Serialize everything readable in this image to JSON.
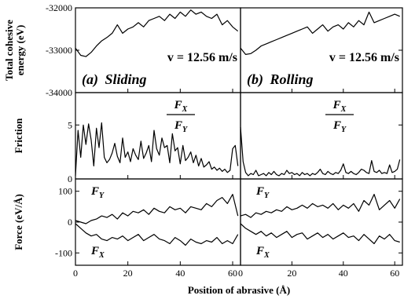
{
  "chart_data": {
    "type": "line",
    "xlabel": "Position of abrasive (Å)",
    "xlim": [
      0,
      63
    ],
    "x_ticks": [
      "0",
      "20",
      "40",
      "60"
    ],
    "x_tick_values": [
      0,
      20,
      40,
      60
    ],
    "columns": [
      {
        "panel_label": "(a)",
        "panel_title": "Sliding",
        "velocity": "v = 12.56 m/s"
      },
      {
        "panel_label": "(b)",
        "panel_title": "Rolling",
        "velocity": "v = 12.56 m/s"
      }
    ],
    "rows": [
      {
        "ylabel": "Total cohesive energy (eV)",
        "ylim": [
          -34000,
          -32000
        ],
        "y_ticks": [
          "-32000",
          "-33000",
          "-34000"
        ],
        "y_tick_values": [
          -32000,
          -33000,
          -34000
        ],
        "series": [
          {
            "column": 0,
            "x": [
              0,
              2,
              4,
              6,
              8,
              10,
              12,
              14,
              16,
              18,
              20,
              22,
              24,
              26,
              28,
              30,
              32,
              34,
              36,
              38,
              40,
              42,
              44,
              46,
              48,
              50,
              52,
              54,
              56,
              58,
              60,
              62
            ],
            "values": [
              -32950,
              -33120,
              -33150,
              -33050,
              -32900,
              -32780,
              -32700,
              -32600,
              -32400,
              -32600,
              -32500,
              -32450,
              -32350,
              -32450,
              -32300,
              -32250,
              -32200,
              -32300,
              -32150,
              -32250,
              -32100,
              -32200,
              -32050,
              -32150,
              -32100,
              -32200,
              -32250,
              -32150,
              -32400,
              -32300,
              -32450,
              -32550
            ]
          },
          {
            "column": 1,
            "x": [
              0,
              2,
              4,
              6,
              8,
              10,
              12,
              14,
              16,
              18,
              20,
              22,
              24,
              26,
              28,
              30,
              32,
              34,
              36,
              38,
              40,
              42,
              44,
              46,
              48,
              50,
              52,
              54,
              56,
              58,
              60,
              62
            ],
            "values": [
              -32950,
              -33100,
              -33080,
              -33000,
              -32900,
              -32850,
              -32800,
              -32750,
              -32700,
              -32650,
              -32600,
              -32550,
              -32500,
              -32450,
              -32600,
              -32500,
              -32400,
              -32550,
              -32450,
              -32400,
              -32500,
              -32350,
              -32450,
              -32300,
              -32400,
              -32100,
              -32350,
              -32300,
              -32250,
              -32200,
              -32150,
              -32200
            ]
          }
        ]
      },
      {
        "ylabel": "Friction",
        "ylim": [
          0,
          8
        ],
        "y_ticks": [
          "5",
          "0"
        ],
        "y_tick_values": [
          5,
          0
        ],
        "annotation": {
          "numerator": "F",
          "numerator_sub": "X",
          "denominator": "F",
          "denominator_sub": "Y"
        },
        "series": [
          {
            "column": 0,
            "x": [
              0,
              1,
              2,
              3,
              4,
              5,
              6,
              7,
              8,
              9,
              10,
              11,
              12,
              13,
              14,
              15,
              16,
              17,
              18,
              19,
              20,
              21,
              22,
              23,
              24,
              25,
              26,
              27,
              28,
              29,
              30,
              31,
              32,
              33,
              34,
              35,
              36,
              37,
              38,
              39,
              40,
              41,
              42,
              43,
              44,
              45,
              46,
              47,
              48,
              49,
              50,
              51,
              52,
              53,
              54,
              55,
              56,
              57,
              58,
              59,
              60,
              61,
              62
            ],
            "values": [
              0.3,
              4.5,
              2,
              5,
              3.2,
              5.1,
              3.6,
              1.2,
              4.7,
              2.9,
              5.2,
              2,
              1.5,
              1.8,
              2.4,
              3.3,
              2.1,
              1.5,
              3.8,
              2,
              2.5,
              1.6,
              2.8,
              2.2,
              1.8,
              3.5,
              1.9,
              2.4,
              3.1,
              1.6,
              4.5,
              2.8,
              2.2,
              3.8,
              2.9,
              3.1,
              1.5,
              4.2,
              2.6,
              2.9,
              1.4,
              3.1,
              1.7,
              2,
              2.5,
              1.5,
              2.2,
              1.2,
              1.9,
              1.1,
              1.3,
              1.6,
              0.9,
              1.1,
              0.8,
              1,
              0.7,
              0.9,
              0.6,
              0.8,
              2.8,
              3.1,
              1.2
            ]
          },
          {
            "column": 1,
            "x": [
              0,
              1,
              2,
              3,
              4,
              5,
              6,
              7,
              8,
              9,
              10,
              11,
              12,
              13,
              14,
              15,
              16,
              17,
              18,
              19,
              20,
              21,
              22,
              23,
              24,
              25,
              26,
              27,
              28,
              29,
              30,
              31,
              32,
              33,
              34,
              35,
              36,
              37,
              38,
              39,
              40,
              41,
              42,
              43,
              44,
              45,
              46,
              47,
              48,
              49,
              50,
              51,
              52,
              53,
              54,
              55,
              56,
              57,
              58,
              59,
              60,
              61,
              62
            ],
            "values": [
              4.8,
              1.6,
              0.6,
              0.3,
              0.5,
              0.4,
              0.8,
              0.3,
              0.4,
              0.5,
              0.3,
              0.6,
              0.4,
              0.7,
              0.4,
              0.3,
              0.5,
              0.4,
              0.8,
              0.5,
              0.6,
              0.4,
              0.5,
              0.3,
              0.6,
              0.4,
              0.5,
              0.3,
              0.5,
              0.4,
              0.6,
              0.9,
              0.5,
              0.4,
              0.7,
              0.5,
              0.4,
              0.6,
              0.5,
              0.8,
              1.4,
              0.6,
              0.5,
              0.7,
              0.5,
              0.4,
              0.6,
              0.9,
              0.8,
              0.6,
              0.5,
              1.7,
              0.7,
              0.6,
              0.8,
              0.5,
              0.6,
              0.5,
              1.3,
              0.6,
              0.7,
              0.9,
              1.8
            ]
          }
        ]
      },
      {
        "ylabel": "Force (eV/Å)",
        "ylim": [
          -140,
          140
        ],
        "y_ticks": [
          "100",
          "0",
          "-100"
        ],
        "y_tick_values": [
          100,
          0,
          -100
        ],
        "series": [
          {
            "column": 0,
            "name": "F",
            "name_sub": "Y",
            "label_anchor": "top-left",
            "x": [
              0,
              2,
              4,
              6,
              8,
              10,
              12,
              14,
              16,
              18,
              20,
              22,
              24,
              26,
              28,
              30,
              32,
              34,
              36,
              38,
              40,
              42,
              44,
              46,
              48,
              50,
              52,
              54,
              56,
              58,
              60,
              62
            ],
            "values": [
              5,
              0,
              -5,
              5,
              10,
              20,
              15,
              25,
              10,
              30,
              20,
              35,
              30,
              40,
              25,
              45,
              35,
              30,
              50,
              40,
              45,
              30,
              50,
              45,
              40,
              60,
              50,
              70,
              80,
              60,
              90,
              20
            ]
          },
          {
            "column": 0,
            "name": "F",
            "name_sub": "X",
            "label_anchor": "bottom-left",
            "x": [
              0,
              2,
              4,
              6,
              8,
              10,
              12,
              14,
              16,
              18,
              20,
              22,
              24,
              26,
              28,
              30,
              32,
              34,
              36,
              38,
              40,
              42,
              44,
              46,
              48,
              50,
              52,
              54,
              56,
              58,
              60,
              62
            ],
            "values": [
              -5,
              -20,
              -35,
              -45,
              -40,
              -55,
              -60,
              -50,
              -55,
              -45,
              -60,
              -50,
              -40,
              -60,
              -50,
              -40,
              -55,
              -60,
              -70,
              -50,
              -60,
              -75,
              -55,
              -65,
              -70,
              -60,
              -65,
              -50,
              -70,
              -60,
              -70,
              -40
            ]
          },
          {
            "column": 1,
            "name": "F",
            "name_sub": "Y",
            "label_anchor": "top-left",
            "x": [
              0,
              2,
              4,
              6,
              8,
              10,
              12,
              14,
              16,
              18,
              20,
              22,
              24,
              26,
              28,
              30,
              32,
              34,
              36,
              38,
              40,
              42,
              44,
              46,
              48,
              50,
              52,
              54,
              56,
              58,
              60,
              62
            ],
            "values": [
              20,
              25,
              15,
              30,
              25,
              35,
              30,
              40,
              35,
              50,
              40,
              45,
              55,
              45,
              60,
              50,
              55,
              45,
              60,
              40,
              55,
              45,
              60,
              35,
              70,
              55,
              90,
              40,
              55,
              70,
              45,
              75
            ]
          },
          {
            "column": 1,
            "name": "F",
            "name_sub": "X",
            "label_anchor": "bottom-left",
            "x": [
              0,
              2,
              4,
              6,
              8,
              10,
              12,
              14,
              16,
              18,
              20,
              22,
              24,
              26,
              28,
              30,
              32,
              34,
              36,
              38,
              40,
              42,
              44,
              46,
              48,
              50,
              52,
              54,
              56,
              58,
              60,
              62
            ],
            "values": [
              -5,
              -20,
              -30,
              -40,
              -30,
              -45,
              -35,
              -50,
              -40,
              -30,
              -50,
              -40,
              -35,
              -55,
              -45,
              -35,
              -50,
              -40,
              -55,
              -45,
              -35,
              -50,
              -45,
              -60,
              -40,
              -55,
              -70,
              -45,
              -55,
              -40,
              -60,
              -65
            ]
          }
        ]
      }
    ]
  }
}
